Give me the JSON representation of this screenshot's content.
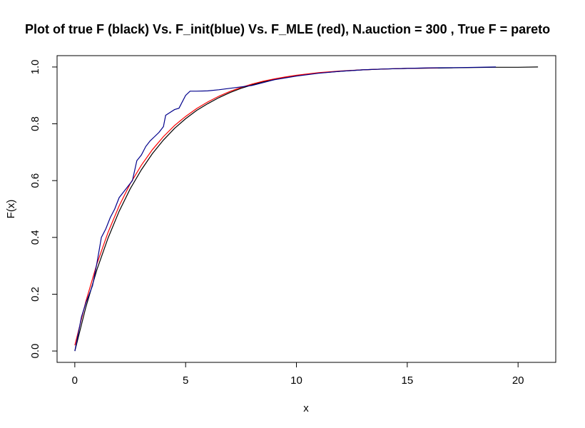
{
  "chart_data": {
    "type": "line",
    "title": "Plot of true F (black) Vs. F_init(blue) Vs. F_MLE (red), N.auction = 300 , True F = pareto",
    "xlabel": "x",
    "ylabel": "F(x)",
    "xlim": [
      -0.8,
      21.7
    ],
    "ylim": [
      -0.04,
      1.04
    ],
    "x_ticks": [
      0,
      5,
      10,
      15,
      20
    ],
    "x_tick_labels": [
      "0",
      "5",
      "10",
      "15",
      "20"
    ],
    "y_ticks": [
      0.0,
      0.2,
      0.4,
      0.6,
      0.8,
      1.0
    ],
    "y_tick_labels": [
      "0.0",
      "0.2",
      "0.4",
      "0.6",
      "0.8",
      "1.0"
    ],
    "grid": false,
    "legend": "none",
    "series": [
      {
        "color": "#000000",
        "x": [
          0,
          0.5,
          1,
          1.5,
          2,
          2.5,
          3,
          3.5,
          4,
          4.5,
          5,
          5.5,
          6,
          6.5,
          7,
          7.5,
          8,
          8.5,
          9,
          9.5,
          10,
          11,
          12,
          13,
          14,
          15,
          16,
          17,
          18,
          19,
          20,
          20.9
        ],
        "y": [
          0,
          0.155,
          0.287,
          0.398,
          0.492,
          0.571,
          0.638,
          0.695,
          0.743,
          0.784,
          0.818,
          0.847,
          0.871,
          0.892,
          0.91,
          0.925,
          0.937,
          0.948,
          0.956,
          0.963,
          0.97,
          0.979,
          0.985,
          0.99,
          0.993,
          0.995,
          0.996,
          0.997,
          0.998,
          0.999,
          0.999,
          1.0
        ]
      },
      {
        "color": "#ff0000",
        "x": [
          0,
          0.5,
          1,
          1.5,
          2,
          2.5,
          3,
          3.5,
          4,
          4.5,
          5,
          5.5,
          6,
          6.5,
          7,
          7.5,
          8,
          8.5,
          9,
          9.5,
          10,
          11,
          12,
          13,
          14,
          15,
          16.4
        ],
        "y": [
          0.02,
          0.175,
          0.307,
          0.418,
          0.511,
          0.589,
          0.654,
          0.709,
          0.755,
          0.794,
          0.826,
          0.854,
          0.877,
          0.897,
          0.914,
          0.928,
          0.94,
          0.95,
          0.958,
          0.965,
          0.971,
          0.98,
          0.986,
          0.99,
          0.993,
          0.995,
          0.997
        ]
      },
      {
        "color": "#00008b",
        "x": [
          0,
          0.3,
          0.5,
          0.8,
          1.0,
          1.2,
          1.4,
          1.6,
          1.8,
          2.0,
          2.2,
          2.4,
          2.6,
          2.8,
          3.0,
          3.2,
          3.4,
          3.6,
          3.8,
          4.0,
          4.1,
          4.3,
          4.5,
          4.7,
          5.0,
          5.2,
          5.5,
          6.0,
          6.5,
          7.0,
          7.5,
          8.0,
          8.5,
          9.0,
          10.0,
          11.0,
          12.0,
          13.0,
          14.0,
          15.0,
          16.0,
          17.5,
          19.0
        ],
        "y": [
          0,
          0.12,
          0.17,
          0.23,
          0.31,
          0.4,
          0.43,
          0.47,
          0.5,
          0.54,
          0.56,
          0.58,
          0.6,
          0.67,
          0.69,
          0.72,
          0.74,
          0.755,
          0.77,
          0.79,
          0.83,
          0.84,
          0.85,
          0.855,
          0.9,
          0.915,
          0.915,
          0.916,
          0.92,
          0.925,
          0.93,
          0.935,
          0.945,
          0.955,
          0.968,
          0.978,
          0.985,
          0.99,
          0.993,
          0.995,
          0.997,
          0.998,
          1.0
        ]
      }
    ]
  }
}
